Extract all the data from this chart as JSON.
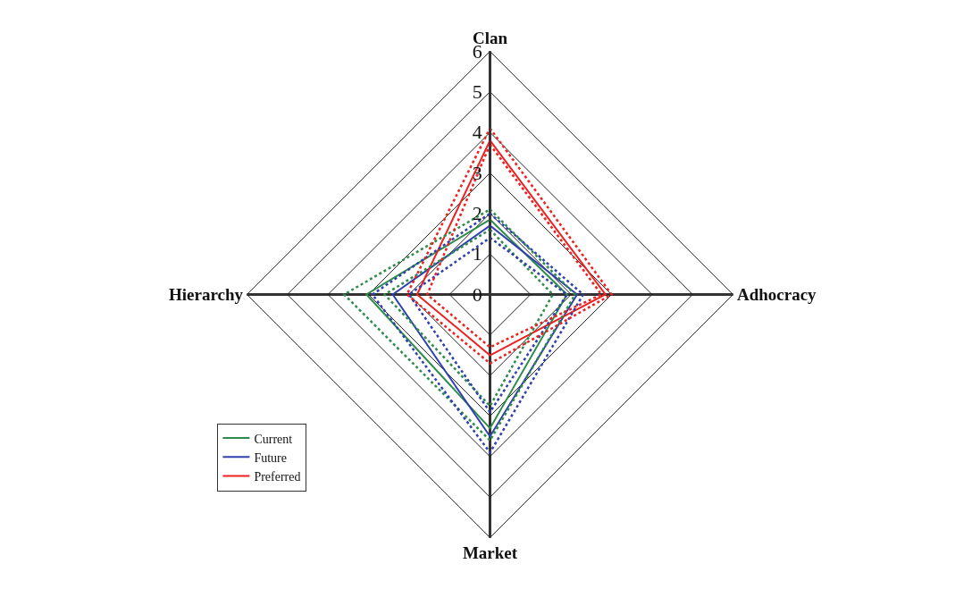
{
  "chart_data": {
    "type": "radar",
    "categories": [
      "Clan",
      "Adhocracy",
      "Market",
      "Hierarchy"
    ],
    "ylim": [
      0,
      6
    ],
    "yticks": [
      0,
      1,
      2,
      3,
      4,
      5,
      6
    ],
    "grid": true,
    "legend": "bottom left",
    "marker": "none",
    "line_style": "solid",
    "series": [
      {
        "name": "Current",
        "color": "#2e8b4a",
        "values": [
          1.85,
          1.9,
          3.3,
          3.05
        ]
      },
      {
        "name": "Future",
        "color": "#3040b0",
        "values": [
          1.7,
          2.15,
          3.5,
          2.4
        ]
      },
      {
        "name": "Preferred",
        "color": "#ee2020",
        "values": [
          3.8,
          2.85,
          1.5,
          1.8
        ]
      },
      {
        "color": "#2e8b4a",
        "line_style": "dotted",
        "values": [
          2.1,
          2.1,
          3.6,
          3.6
        ]
      },
      {
        "color": "#2e8b4a",
        "line_style": "dotted",
        "values": [
          1.6,
          1.55,
          2.75,
          2.6
        ]
      },
      {
        "color": "#3040b0",
        "line_style": "dotted",
        "values": [
          2.0,
          2.3,
          3.9,
          2.9
        ]
      },
      {
        "color": "#3040b0",
        "line_style": "dotted",
        "values": [
          1.4,
          1.9,
          2.9,
          2.0
        ]
      },
      {
        "color": "#ee2020",
        "line_style": "dotted",
        "values": [
          4.1,
          3.0,
          1.7,
          2.05
        ]
      },
      {
        "color": "#ee2020",
        "line_style": "dotted",
        "values": [
          3.7,
          2.75,
          1.3,
          1.55
        ]
      }
    ]
  }
}
